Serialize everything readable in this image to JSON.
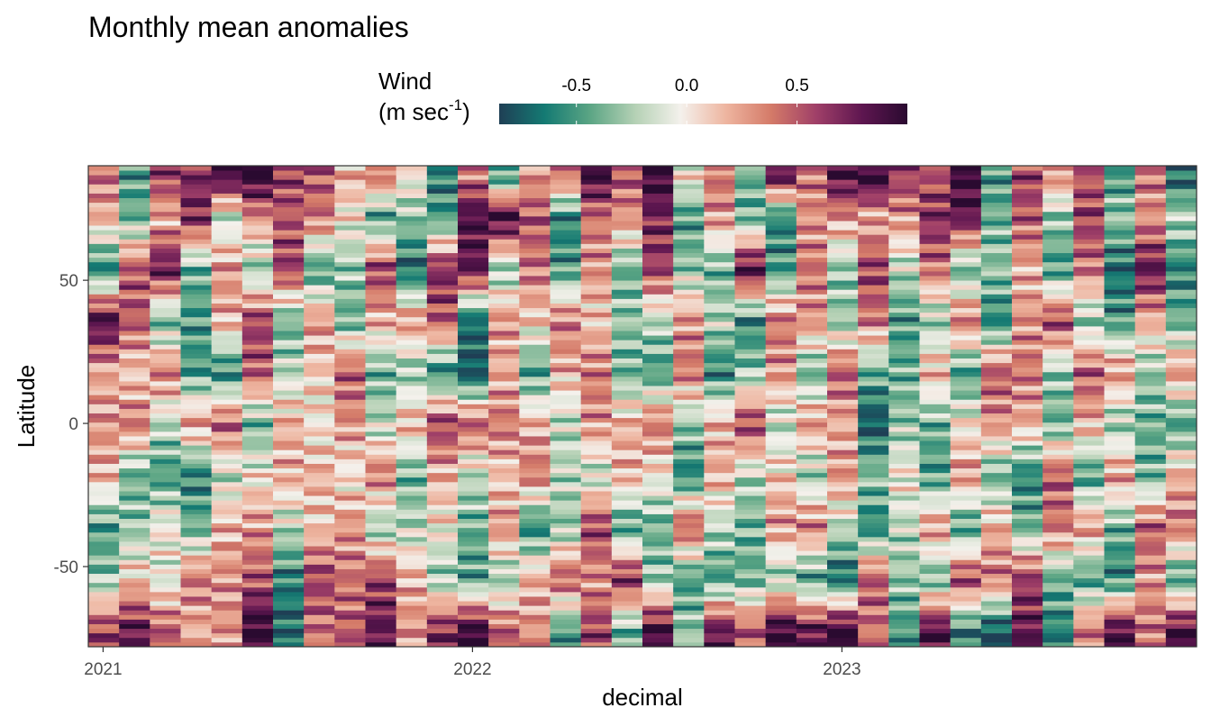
{
  "chart_data": {
    "type": "heatmap",
    "title": "Monthly mean anomalies",
    "xlabel": "decimal",
    "ylabel": "Latitude",
    "x_ticks": [
      "2021",
      "2022",
      "2023"
    ],
    "y_ticks": [
      "50",
      "0",
      "-50"
    ],
    "x_range": [
      2020.96,
      2023.96
    ],
    "y_range": [
      -78,
      90
    ],
    "legend": {
      "title_line1": "Wind",
      "title_line2_pre": "(m sec",
      "title_line2_sup": "-1",
      "title_line2_post": ")",
      "ticks": [
        "-0.5",
        "0.0",
        "0.5"
      ],
      "range": [
        -0.85,
        1.0
      ],
      "colors": [
        "#1f3f55",
        "#147a73",
        "#5ba584",
        "#b5d1b5",
        "#f4f1ec",
        "#eeb5a0",
        "#d47a68",
        "#9f3f68",
        "#5e1650",
        "#2a0a30"
      ],
      "placement": "top"
    },
    "months": [
      "2021-01",
      "2021-02",
      "2021-03",
      "2021-04",
      "2021-05",
      "2021-06",
      "2021-07",
      "2021-08",
      "2021-09",
      "2021-10",
      "2021-11",
      "2021-12",
      "2022-01",
      "2022-02",
      "2022-03",
      "2022-04",
      "2022-05",
      "2022-06",
      "2022-07",
      "2022-08",
      "2022-09",
      "2022-10",
      "2022-11",
      "2022-12",
      "2023-01",
      "2023-02",
      "2023-03",
      "2023-04",
      "2023-05",
      "2023-06",
      "2023-07",
      "2023-08",
      "2023-09",
      "2023-10",
      "2023-11",
      "2023-12"
    ],
    "lat_bands": [
      -72,
      -54,
      -36,
      -18,
      0,
      18,
      36,
      54,
      72,
      86
    ],
    "anomaly_profiles": [
      [
        0.6,
        -0.3,
        -0.5,
        0.2,
        0.3,
        0.2,
        0.9,
        -0.6,
        0.2,
        0.4
      ],
      [
        0.8,
        0.1,
        -0.3,
        -0.4,
        0.4,
        0.1,
        0.5,
        0.5,
        -0.4,
        -0.5
      ],
      [
        0.5,
        -0.1,
        0.0,
        -0.5,
        -0.2,
        0.4,
        -0.4,
        0.8,
        0.2,
        0.6
      ],
      [
        0.2,
        0.4,
        -0.4,
        -0.6,
        0.3,
        -0.5,
        -0.5,
        -0.4,
        0.7,
        0.7
      ],
      [
        0.3,
        0.3,
        0.2,
        -0.2,
        0.5,
        -0.6,
        0.2,
        0.3,
        -0.2,
        0.9
      ],
      [
        1.0,
        0.5,
        0.3,
        0.0,
        -0.4,
        0.5,
        0.6,
        -0.3,
        0.3,
        1.0
      ],
      [
        -0.7,
        -0.6,
        -0.2,
        0.2,
        0.2,
        -0.2,
        -0.4,
        0.6,
        0.5,
        0.6
      ],
      [
        0.4,
        0.6,
        0.1,
        0.2,
        0.0,
        0.1,
        0.3,
        -0.5,
        0.4,
        0.5
      ],
      [
        0.5,
        0.4,
        0.3,
        0.0,
        0.3,
        0.5,
        -0.4,
        -0.3,
        0.0,
        0.2
      ],
      [
        0.8,
        0.6,
        -0.3,
        0.4,
        -0.2,
        -0.4,
        0.2,
        0.6,
        -0.5,
        0.4
      ],
      [
        0.3,
        0.2,
        -0.2,
        -0.4,
        0.2,
        -0.3,
        0.3,
        -0.7,
        -0.3,
        0.0
      ],
      [
        0.7,
        -0.3,
        0.0,
        0.2,
        0.6,
        -0.6,
        0.5,
        0.7,
        -0.5,
        -0.6
      ],
      [
        1.0,
        -0.5,
        -0.4,
        -0.2,
        0.5,
        -0.8,
        -0.7,
        0.8,
        0.9,
        0.4
      ],
      [
        0.5,
        -0.3,
        0.3,
        0.1,
        0.4,
        0.2,
        0.3,
        -0.3,
        1.0,
        -0.5
      ],
      [
        0.3,
        0.2,
        -0.6,
        0.4,
        0.2,
        -0.5,
        0.1,
        0.4,
        0.5,
        0.3
      ],
      [
        -0.5,
        0.5,
        -0.3,
        -0.2,
        -0.2,
        0.2,
        0.4,
        -0.5,
        -0.6,
        0.4
      ],
      [
        0.6,
        0.3,
        0.6,
        -0.2,
        0.3,
        0.4,
        0.1,
        0.3,
        0.4,
        0.9
      ],
      [
        -0.4,
        0.7,
        -0.5,
        0.2,
        0.2,
        -0.4,
        -0.3,
        -0.4,
        0.3,
        0.5
      ],
      [
        0.9,
        -0.3,
        -0.4,
        0.0,
        0.4,
        -0.5,
        -0.2,
        0.6,
        0.7,
        1.0
      ],
      [
        -0.3,
        -0.5,
        0.5,
        -0.6,
        -0.3,
        0.4,
        0.3,
        -0.3,
        -0.5,
        0.0
      ],
      [
        0.8,
        -0.5,
        -0.2,
        0.2,
        0.2,
        -0.6,
        -0.2,
        -0.4,
        0.3,
        0.4
      ],
      [
        0.5,
        -0.4,
        -0.4,
        -0.2,
        0.6,
        -0.3,
        -0.6,
        0.9,
        -0.4,
        -0.4
      ],
      [
        1.0,
        -0.3,
        0.3,
        0.1,
        -0.2,
        0.3,
        0.4,
        -0.5,
        -0.6,
        0.8
      ],
      [
        0.8,
        -0.5,
        0.4,
        -0.3,
        0.3,
        -0.4,
        0.3,
        0.4,
        0.3,
        0.4
      ],
      [
        1.0,
        -0.7,
        -0.2,
        0.3,
        0.2,
        0.5,
        -0.3,
        -0.3,
        0.3,
        0.9
      ],
      [
        0.4,
        0.5,
        -0.6,
        -0.3,
        -0.8,
        -0.4,
        0.4,
        0.6,
        0.2,
        1.0
      ],
      [
        -0.5,
        -0.3,
        -0.2,
        0.0,
        -0.3,
        -0.4,
        -0.5,
        -0.2,
        0.3,
        0.6
      ],
      [
        0.9,
        -0.4,
        0.3,
        -0.5,
        -0.4,
        0.2,
        -0.3,
        0.4,
        0.7,
        0.5
      ],
      [
        -0.6,
        0.6,
        -0.5,
        0.3,
        0.0,
        -0.5,
        0.4,
        -0.4,
        0.8,
        1.0
      ],
      [
        -0.8,
        0.4,
        0.2,
        -0.4,
        0.3,
        0.5,
        -0.6,
        -0.3,
        -0.4,
        -0.5
      ],
      [
        0.8,
        0.6,
        -0.4,
        -0.6,
        0.2,
        0.4,
        0.3,
        0.2,
        0.5,
        0.6
      ],
      [
        -0.6,
        -0.4,
        0.4,
        0.5,
        -0.4,
        -0.3,
        0.6,
        -0.5,
        -0.3,
        0.3
      ],
      [
        0.4,
        -0.5,
        0.3,
        -0.5,
        0.2,
        0.5,
        -0.3,
        0.4,
        0.6,
        0.5
      ],
      [
        0.9,
        -0.6,
        -0.4,
        0.3,
        -0.3,
        0.3,
        -0.5,
        -0.7,
        -0.3,
        -0.5
      ],
      [
        0.4,
        0.3,
        0.5,
        -0.4,
        -0.4,
        -0.3,
        0.2,
        0.8,
        0.3,
        0.4
      ],
      [
        0.9,
        -0.5,
        0.4,
        0.2,
        -0.5,
        0.3,
        -0.4,
        -0.6,
        -0.2,
        -0.7
      ]
    ],
    "grid": false
  }
}
